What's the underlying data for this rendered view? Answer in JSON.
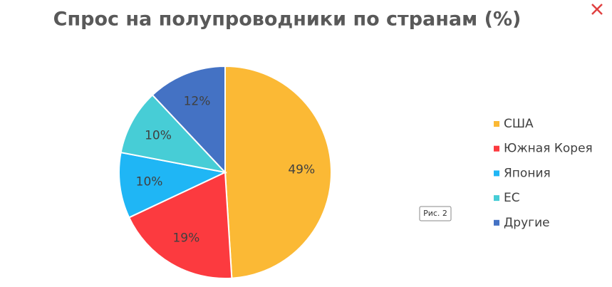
{
  "chart_data": {
    "type": "pie",
    "title": "Спрос на полупроводники по странам (%)",
    "categories": [
      "США",
      "Южная Корея",
      "Япония",
      "ЕС",
      "Другие"
    ],
    "values": [
      49,
      19,
      10,
      10,
      12
    ],
    "value_labels": [
      "49%",
      "19%",
      "10%",
      "10%",
      "12%"
    ],
    "colors": [
      "#fbb935",
      "#fc3a3f",
      "#1fb6f5",
      "#47cdd6",
      "#4472c4"
    ],
    "legend": "right"
  },
  "figure_label": "Рис. 2"
}
